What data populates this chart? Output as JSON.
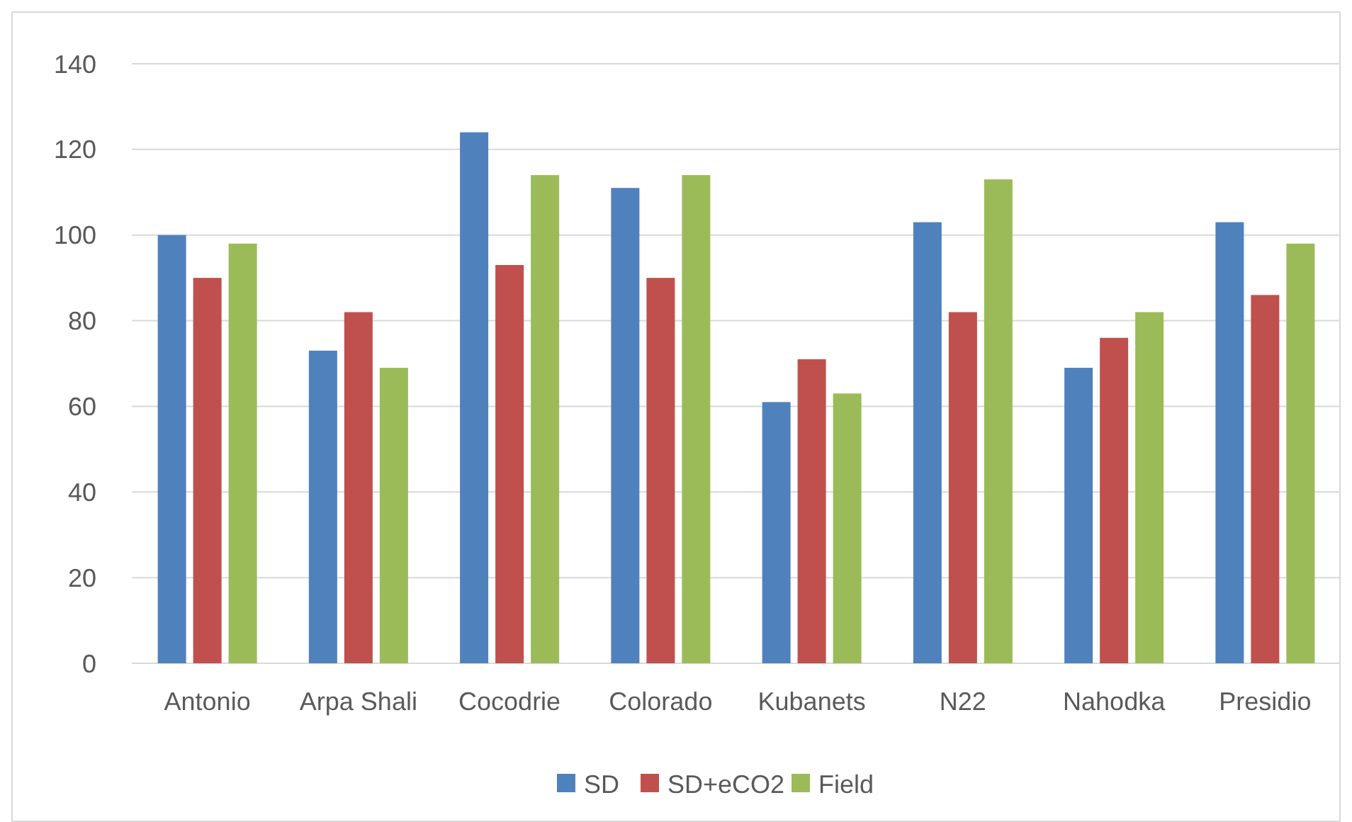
{
  "chart_data": {
    "type": "bar",
    "categories": [
      "Antonio",
      "Arpa Shali",
      "Cocodrie",
      "Colorado",
      "Kubanets",
      "N22",
      "Nahodka",
      "Presidio"
    ],
    "series": [
      {
        "name": "SD",
        "color": "#4f81bd",
        "values": [
          100,
          73,
          124,
          111,
          61,
          103,
          69,
          103
        ]
      },
      {
        "name": "SD+eCO2",
        "color": "#c0504d",
        "values": [
          90,
          82,
          93,
          90,
          71,
          82,
          76,
          86
        ]
      },
      {
        "name": "Field",
        "color": "#9bbb59",
        "values": [
          98,
          69,
          114,
          114,
          63,
          113,
          82,
          98
        ]
      }
    ],
    "ylim": [
      0,
      140
    ],
    "yticks": [
      0,
      20,
      40,
      60,
      80,
      100,
      120,
      140
    ],
    "grid": "y",
    "legend": "bottom"
  }
}
